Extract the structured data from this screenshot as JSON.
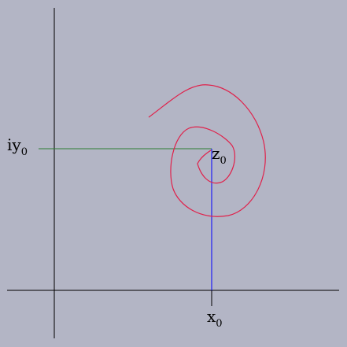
{
  "diagram": {
    "background": "#b3b5c5",
    "colors": {
      "axes": "#000000",
      "horizontal_projection": "#2e7d32",
      "vertical_projection": "#0000ff",
      "spiral": "#e0204a"
    },
    "labels": {
      "y_label_main": "iy",
      "y_label_sub": "0",
      "point_label_main": "z",
      "point_label_sub": "0",
      "x_label_main": "x",
      "x_label_sub": "0"
    }
  }
}
